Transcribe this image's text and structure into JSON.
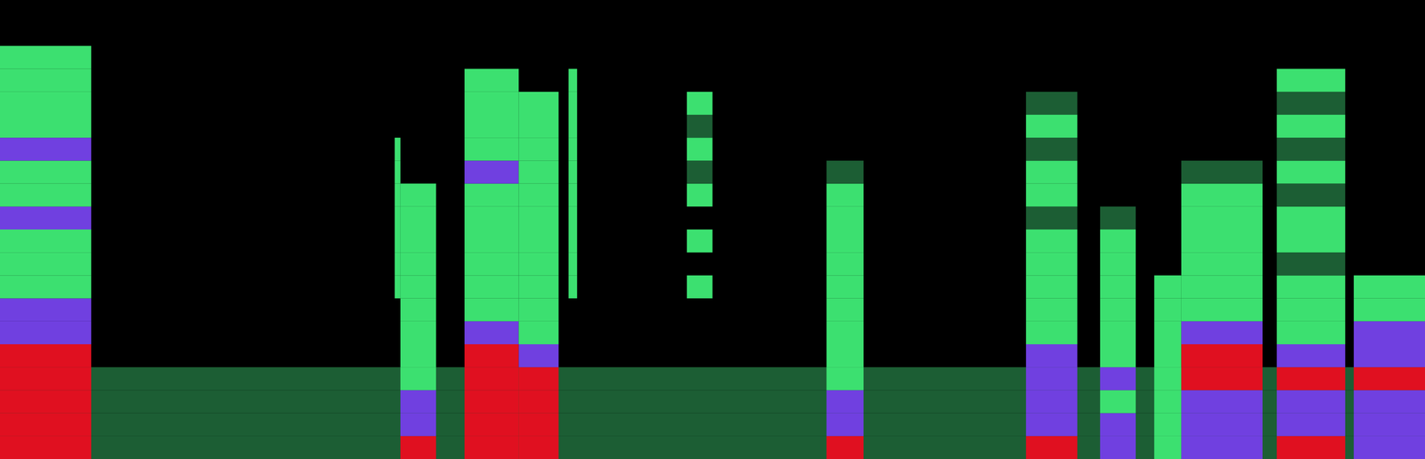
{
  "chart_data": {
    "type": "spectrogram",
    "tick_labels": false,
    "xlim": [
      0,
      100
    ],
    "ylim": [
      0,
      100
    ],
    "f_bands": [
      0,
      5,
      10,
      15,
      20,
      25,
      30,
      35,
      40,
      45,
      50,
      55,
      60,
      65,
      70,
      75,
      80,
      85,
      90,
      95,
      100
    ],
    "levels": [
      1,
      2,
      3,
      4
    ],
    "colors": [
      "#1c5e34",
      "#3ce070",
      "#7040e0",
      "#e01020"
    ],
    "segments": [
      {
        "t": [
          0,
          100
        ],
        "bands": [
          1,
          1,
          1,
          1,
          0,
          0,
          0,
          0,
          0,
          0,
          0,
          0,
          0,
          0,
          0,
          0,
          0,
          0,
          0,
          0
        ]
      },
      {
        "t": [
          0,
          6.4
        ],
        "bands": [
          4,
          4,
          4,
          4,
          4,
          3,
          3,
          2,
          2,
          2,
          3,
          2,
          2,
          3,
          2,
          2,
          2,
          2,
          0,
          0
        ]
      },
      {
        "t": [
          27.7,
          28.1
        ],
        "bands": [
          0,
          0,
          0,
          0,
          0,
          0,
          0,
          2,
          2,
          2,
          2,
          2,
          2,
          2,
          0,
          0,
          0,
          0,
          0,
          0
        ]
      },
      {
        "t": [
          28.1,
          30.6
        ],
        "bands": [
          4,
          3,
          3,
          2,
          2,
          2,
          2,
          2,
          2,
          2,
          2,
          2,
          0,
          0,
          0,
          0,
          0,
          0,
          0,
          0
        ]
      },
      {
        "t": [
          32.6,
          36.4
        ],
        "bands": [
          4,
          4,
          4,
          4,
          4,
          3,
          2,
          2,
          2,
          2,
          2,
          2,
          3,
          2,
          2,
          2,
          2,
          0,
          0,
          0
        ]
      },
      {
        "t": [
          36.4,
          39.2
        ],
        "bands": [
          4,
          4,
          4,
          4,
          3,
          2,
          2,
          2,
          2,
          2,
          2,
          2,
          2,
          2,
          2,
          2,
          0,
          0,
          0,
          0
        ]
      },
      {
        "t": [
          39.9,
          40.5
        ],
        "bands": [
          0,
          0,
          0,
          0,
          0,
          0,
          0,
          2,
          2,
          2,
          2,
          2,
          2,
          2,
          2,
          2,
          2,
          0,
          0,
          0
        ]
      },
      {
        "t": [
          48.2,
          50
        ],
        "bands": [
          0,
          0,
          0,
          0,
          0,
          0,
          0,
          2,
          0,
          2,
          0,
          2,
          1,
          2,
          1,
          2,
          0,
          0,
          0,
          0
        ]
      },
      {
        "t": [
          58,
          60.6
        ],
        "bands": [
          4,
          3,
          3,
          2,
          2,
          2,
          2,
          2,
          2,
          2,
          2,
          2,
          1,
          0,
          0,
          0,
          0,
          0,
          0,
          0
        ]
      },
      {
        "t": [
          72,
          75.6
        ],
        "bands": [
          4,
          3,
          3,
          3,
          3,
          2,
          2,
          2,
          2,
          2,
          1,
          2,
          2,
          1,
          2,
          1,
          0,
          0,
          0,
          0
        ]
      },
      {
        "t": [
          77.2,
          79.7
        ],
        "bands": [
          3,
          3,
          2,
          3,
          2,
          2,
          2,
          2,
          2,
          2,
          1,
          0,
          0,
          0,
          0,
          0,
          0,
          0,
          0,
          0
        ]
      },
      {
        "t": [
          81,
          82.9
        ],
        "bands": [
          2,
          2,
          2,
          2,
          2,
          2,
          2,
          2,
          0,
          0,
          0,
          0,
          0,
          0,
          0,
          0,
          0,
          0,
          0,
          0
        ]
      },
      {
        "t": [
          82.9,
          88.6
        ],
        "bands": [
          3,
          3,
          3,
          4,
          4,
          3,
          2,
          2,
          2,
          2,
          2,
          2,
          1,
          0,
          0,
          0,
          0,
          0,
          0,
          0
        ]
      },
      {
        "t": [
          89.6,
          94.4
        ],
        "bands": [
          4,
          3,
          3,
          4,
          3,
          2,
          2,
          2,
          1,
          2,
          2,
          1,
          2,
          1,
          2,
          1,
          2,
          0,
          0,
          0
        ]
      },
      {
        "t": [
          95,
          100
        ],
        "bands": [
          3,
          3,
          3,
          4,
          3,
          3,
          2,
          2,
          0,
          0,
          0,
          0,
          0,
          0,
          0,
          0,
          0,
          0,
          0,
          0
        ]
      }
    ]
  }
}
